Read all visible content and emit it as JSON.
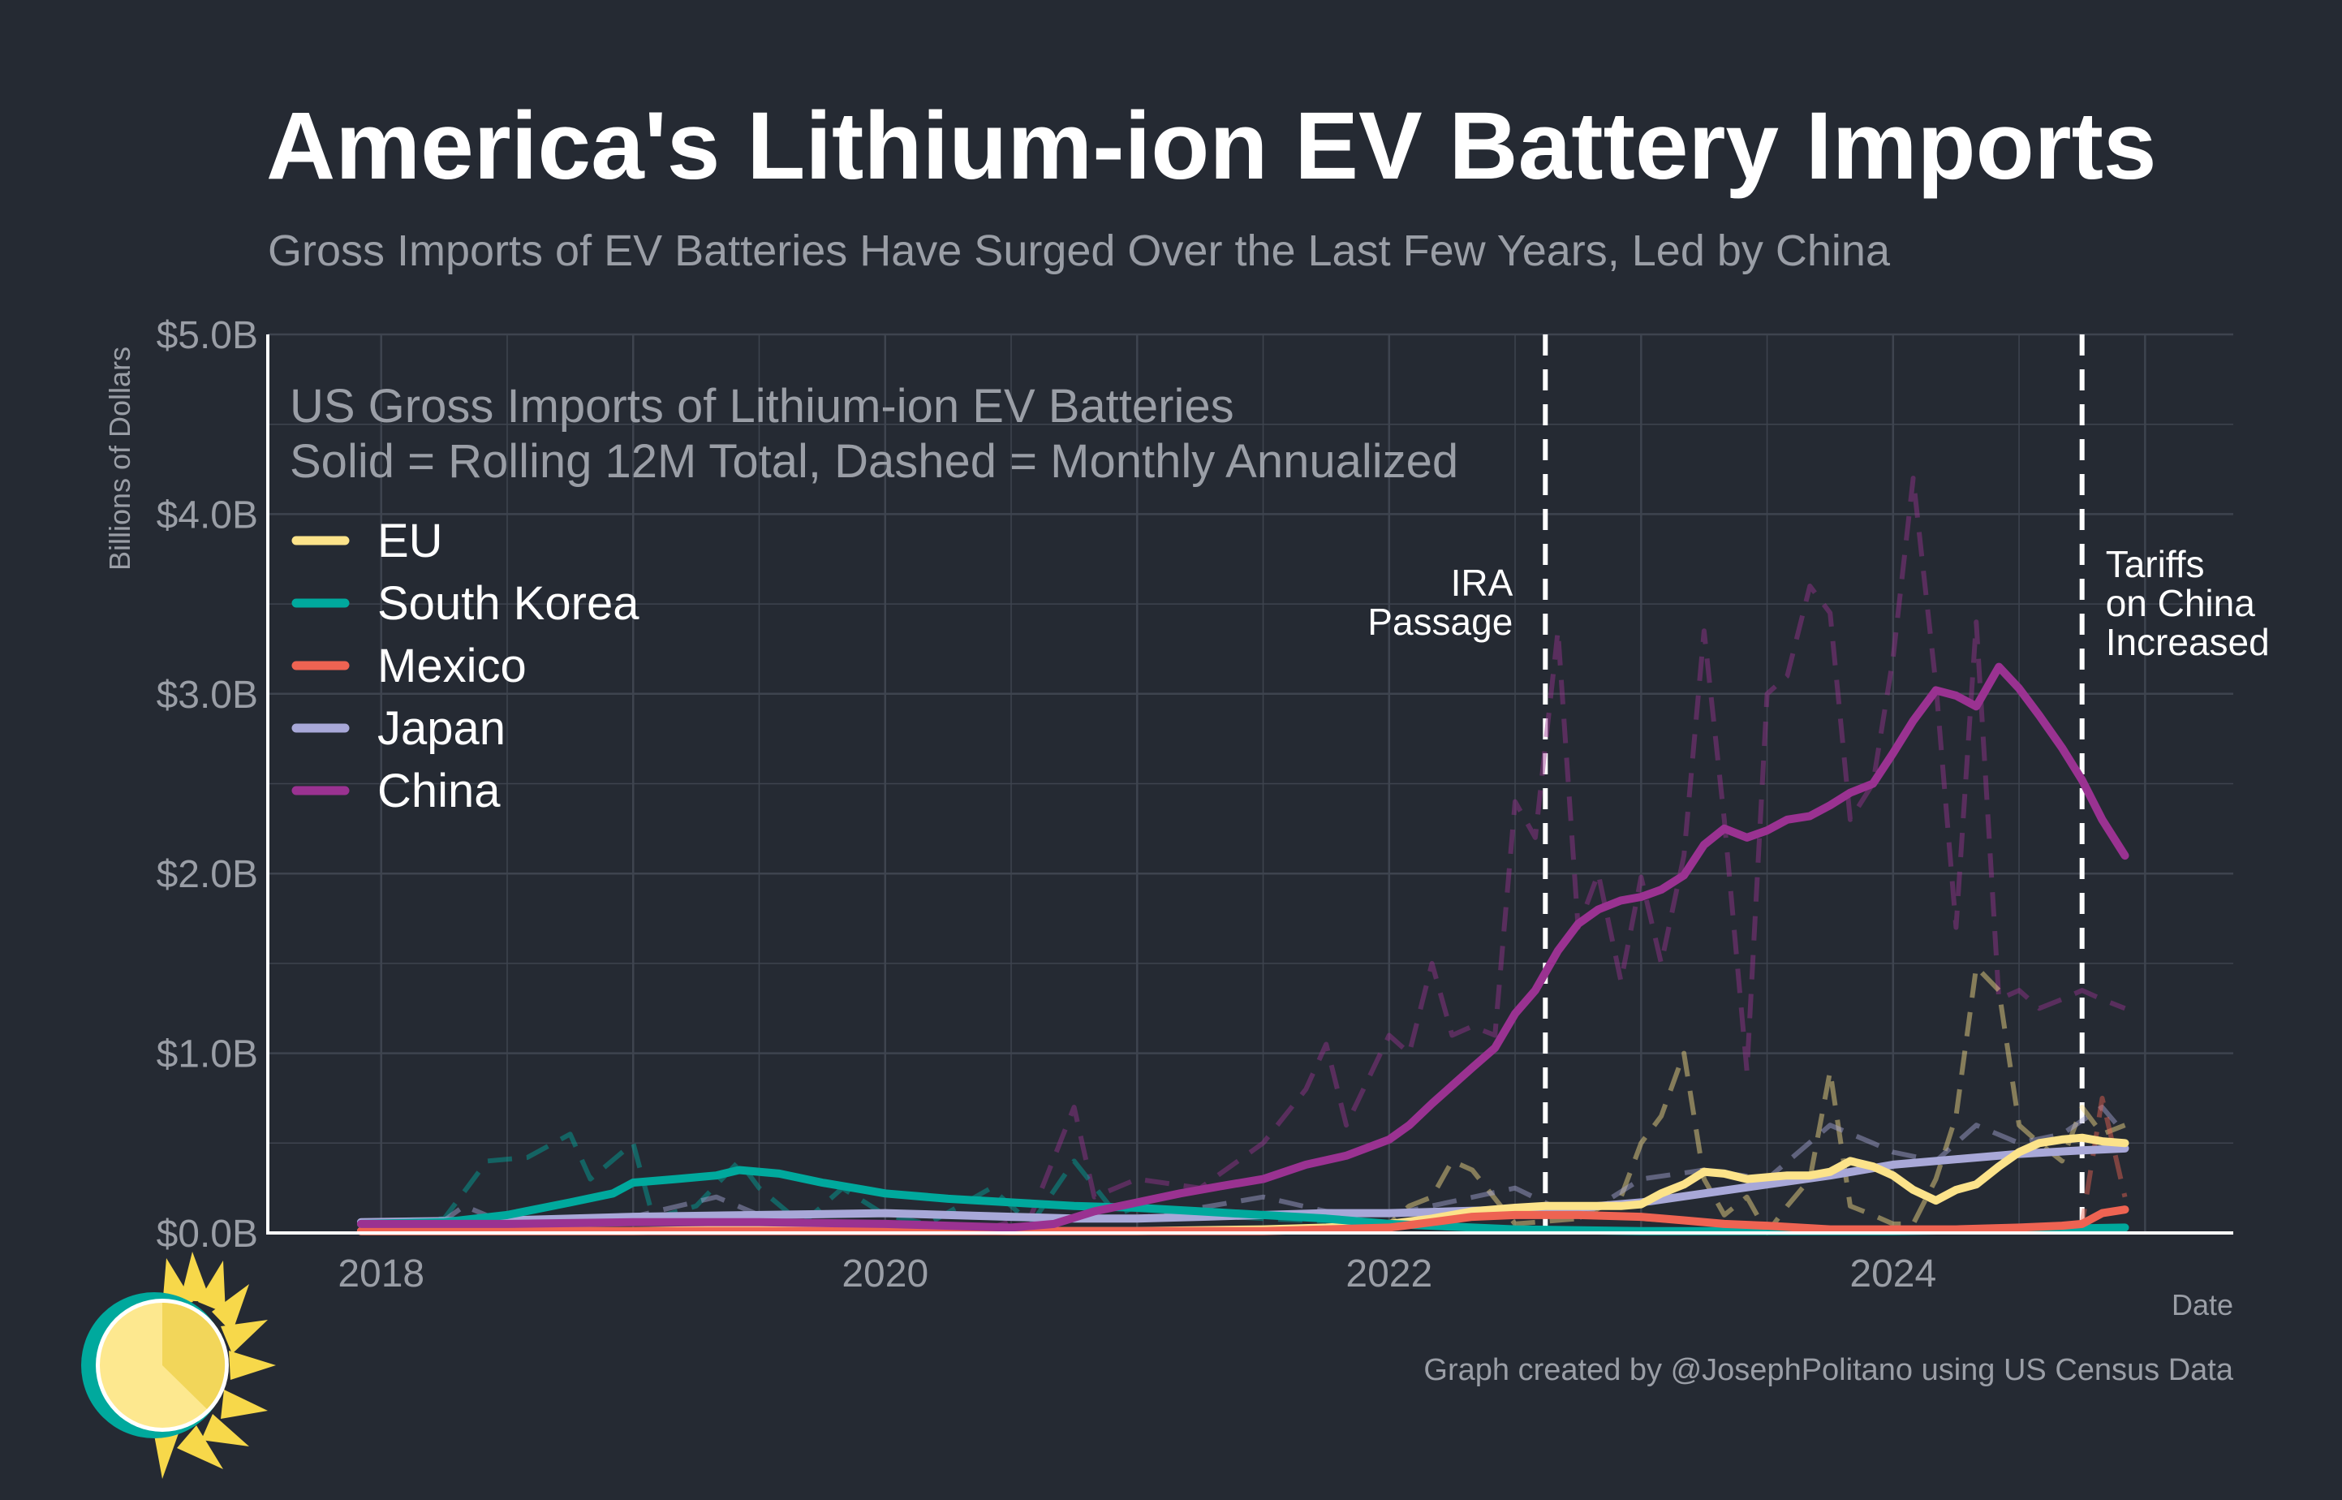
{
  "colors": {
    "background": "#252a33",
    "grid": "#3e444f",
    "axis": "#ffffff",
    "tick_text": "#9a9ea6",
    "title": "#ffffff",
    "subtitle": "#9a9ea6",
    "EU": "#fce38a",
    "South Korea": "#00a99d",
    "Mexico": "#ee6352",
    "Japan": "#a8a8d8",
    "China": "#9a3291"
  },
  "logo": {
    "name": "sun-logo-icon"
  },
  "chart_data": {
    "type": "line",
    "title": "America's Lithium-ion EV Battery Imports",
    "subtitle": "Gross Imports of EV Batteries Have Surged Over the Last Few Years, Led by China",
    "inner_title_line1": "US Gross Imports of Lithium-ion EV Batteries",
    "inner_title_line2": "Solid = Rolling 12M Total, Dashed = Monthly Annualized",
    "xlabel": "Date",
    "ylabel": "Billions of Dollars",
    "caption": "Graph created by @JosephPolitano using US Census Data",
    "xlim": [
      2017.55,
      2025.35
    ],
    "ylim": [
      0,
      5
    ],
    "x_ticks": [
      {
        "value": 2018,
        "label": "2018"
      },
      {
        "value": 2020,
        "label": "2020"
      },
      {
        "value": 2022,
        "label": "2022"
      },
      {
        "value": 2024,
        "label": "2024"
      }
    ],
    "y_ticks": [
      {
        "value": 0,
        "label": "$0.0B"
      },
      {
        "value": 1,
        "label": "$1.0B"
      },
      {
        "value": 2,
        "label": "$2.0B"
      },
      {
        "value": 3,
        "label": "$3.0B"
      },
      {
        "value": 4,
        "label": "$4.0B"
      },
      {
        "value": 5,
        "label": "$5.0B"
      }
    ],
    "grid": true,
    "legend_position": "top-left",
    "legend": [
      "EU",
      "South Korea",
      "Mexico",
      "Japan",
      "China"
    ],
    "annotations": [
      {
        "x": 2022.62,
        "lines": [
          "IRA",
          "Passage"
        ],
        "side": "left"
      },
      {
        "x": 2024.75,
        "lines": [
          "Tariffs",
          "on China",
          "Increased"
        ],
        "side": "right"
      }
    ],
    "series": [
      {
        "name": "EU",
        "style": "solid",
        "x": [
          2017.92,
          2018.5,
          2019.0,
          2019.5,
          2020.0,
          2020.5,
          2021.0,
          2021.5,
          2021.75,
          2022.0,
          2022.17,
          2022.33,
          2022.5,
          2022.62,
          2022.75,
          2022.92,
          2023.0,
          2023.08,
          2023.17,
          2023.25,
          2023.33,
          2023.42,
          2023.5,
          2023.58,
          2023.67,
          2023.75,
          2023.83,
          2023.92,
          2024.0,
          2024.08,
          2024.17,
          2024.25,
          2024.33,
          2024.42,
          2024.5,
          2024.58,
          2024.67,
          2024.75,
          2024.83,
          2024.92
        ],
        "values": [
          0.01,
          0.01,
          0.01,
          0.02,
          0.02,
          0.01,
          0.01,
          0.02,
          0.03,
          0.05,
          0.08,
          0.12,
          0.14,
          0.15,
          0.15,
          0.15,
          0.16,
          0.22,
          0.27,
          0.34,
          0.33,
          0.3,
          0.31,
          0.32,
          0.32,
          0.34,
          0.4,
          0.37,
          0.32,
          0.24,
          0.18,
          0.24,
          0.27,
          0.37,
          0.45,
          0.5,
          0.52,
          0.53,
          0.51,
          0.5
        ]
      },
      {
        "name": "South Korea",
        "style": "solid",
        "x": [
          2017.92,
          2018.25,
          2018.5,
          2018.75,
          2018.92,
          2019.0,
          2019.17,
          2019.33,
          2019.42,
          2019.58,
          2019.75,
          2019.92,
          2020.0,
          2020.25,
          2020.5,
          2020.75,
          2021.0,
          2021.25,
          2021.5,
          2021.75,
          2022.0,
          2022.5,
          2023.0,
          2023.5,
          2024.0,
          2024.5,
          2024.92
        ],
        "values": [
          0.05,
          0.06,
          0.1,
          0.17,
          0.22,
          0.28,
          0.3,
          0.32,
          0.35,
          0.33,
          0.28,
          0.24,
          0.22,
          0.19,
          0.17,
          0.15,
          0.14,
          0.12,
          0.1,
          0.08,
          0.05,
          0.02,
          0.01,
          0.01,
          0.01,
          0.02,
          0.03
        ]
      },
      {
        "name": "Mexico",
        "style": "solid",
        "x": [
          2017.92,
          2018.5,
          2019.0,
          2019.5,
          2020.0,
          2020.5,
          2021.0,
          2021.5,
          2022.0,
          2022.17,
          2022.33,
          2022.5,
          2022.75,
          2023.0,
          2023.17,
          2023.33,
          2023.5,
          2023.75,
          2024.0,
          2024.25,
          2024.5,
          2024.67,
          2024.75,
          2024.83,
          2024.92
        ],
        "values": [
          0.01,
          0.01,
          0.01,
          0.01,
          0.01,
          0.01,
          0.01,
          0.01,
          0.03,
          0.06,
          0.09,
          0.1,
          0.1,
          0.09,
          0.07,
          0.05,
          0.04,
          0.02,
          0.02,
          0.02,
          0.03,
          0.04,
          0.05,
          0.11,
          0.13
        ]
      },
      {
        "name": "Japan",
        "style": "solid",
        "x": [
          2017.92,
          2018.5,
          2019.0,
          2019.5,
          2020.0,
          2020.25,
          2020.5,
          2020.75,
          2021.0,
          2021.25,
          2021.5,
          2021.75,
          2022.0,
          2022.25,
          2022.5,
          2022.75,
          2023.0,
          2023.25,
          2023.5,
          2023.75,
          2024.0,
          2024.25,
          2024.5,
          2024.75,
          2024.92
        ],
        "values": [
          0.06,
          0.07,
          0.09,
          0.1,
          0.11,
          0.1,
          0.09,
          0.08,
          0.08,
          0.09,
          0.1,
          0.11,
          0.11,
          0.12,
          0.13,
          0.14,
          0.17,
          0.22,
          0.27,
          0.32,
          0.38,
          0.41,
          0.44,
          0.46,
          0.47
        ]
      },
      {
        "name": "China",
        "style": "solid",
        "x": [
          2017.92,
          2018.5,
          2019.0,
          2019.5,
          2020.0,
          2020.25,
          2020.5,
          2020.67,
          2020.83,
          2021.0,
          2021.17,
          2021.33,
          2021.5,
          2021.67,
          2021.83,
          2022.0,
          2022.08,
          2022.17,
          2022.25,
          2022.33,
          2022.42,
          2022.5,
          2022.58,
          2022.67,
          2022.75,
          2022.83,
          2022.92,
          2023.0,
          2023.08,
          2023.17,
          2023.25,
          2023.33,
          2023.42,
          2023.5,
          2023.58,
          2023.67,
          2023.75,
          2023.83,
          2023.92,
          2024.0,
          2024.08,
          2024.17,
          2024.25,
          2024.33,
          2024.42,
          2024.5,
          2024.58,
          2024.67,
          2024.75,
          2024.83,
          2024.92
        ],
        "values": [
          0.05,
          0.05,
          0.06,
          0.06,
          0.05,
          0.04,
          0.03,
          0.05,
          0.12,
          0.17,
          0.22,
          0.26,
          0.3,
          0.38,
          0.43,
          0.52,
          0.6,
          0.72,
          0.82,
          0.92,
          1.03,
          1.22,
          1.35,
          1.57,
          1.72,
          1.8,
          1.85,
          1.87,
          1.91,
          1.99,
          2.16,
          2.25,
          2.2,
          2.24,
          2.3,
          2.32,
          2.38,
          2.45,
          2.5,
          2.67,
          2.85,
          3.02,
          2.99,
          2.93,
          3.15,
          3.03,
          2.88,
          2.7,
          2.52,
          2.3,
          2.1
        ]
      },
      {
        "name": "China",
        "style": "dashed",
        "x": [
          2017.92,
          2018.5,
          2019.0,
          2019.5,
          2020.0,
          2020.42,
          2020.58,
          2020.75,
          2020.83,
          2021.0,
          2021.25,
          2021.5,
          2021.67,
          2021.75,
          2021.83,
          2022.0,
          2022.08,
          2022.17,
          2022.25,
          2022.33,
          2022.42,
          2022.5,
          2022.58,
          2022.67,
          2022.75,
          2022.83,
          2022.92,
          2023.0,
          2023.08,
          2023.17,
          2023.25,
          2023.33,
          2023.42,
          2023.5,
          2023.58,
          2023.67,
          2023.75,
          2023.83,
          2023.92,
          2024.0,
          2024.08,
          2024.17,
          2024.25,
          2024.33,
          2024.42,
          2024.5,
          2024.58,
          2024.67,
          2024.75,
          2024.83,
          2024.92
        ],
        "values": [
          0.05,
          0.05,
          0.06,
          0.06,
          0.05,
          0.03,
          0.1,
          0.7,
          0.2,
          0.3,
          0.25,
          0.5,
          0.8,
          1.05,
          0.6,
          1.1,
          1.0,
          1.5,
          1.1,
          1.15,
          1.1,
          2.4,
          2.2,
          3.35,
          1.7,
          2.0,
          1.4,
          1.98,
          1.5,
          2.1,
          3.35,
          2.3,
          0.9,
          3.0,
          3.1,
          3.6,
          3.45,
          2.3,
          2.5,
          3.2,
          4.2,
          3.05,
          1.7,
          3.4,
          1.3,
          1.35,
          1.25,
          1.3,
          1.35,
          1.3,
          1.25
        ]
      },
      {
        "name": "EU",
        "style": "dashed",
        "x": [
          2017.92,
          2018.5,
          2019.0,
          2019.5,
          2020.0,
          2020.5,
          2021.0,
          2021.5,
          2022.0,
          2022.08,
          2022.17,
          2022.25,
          2022.33,
          2022.5,
          2022.75,
          2022.92,
          2023.0,
          2023.08,
          2023.17,
          2023.25,
          2023.33,
          2023.42,
          2023.5,
          2023.58,
          2023.67,
          2023.75,
          2023.83,
          2023.92,
          2024.0,
          2024.08,
          2024.17,
          2024.25,
          2024.33,
          2024.42,
          2024.5,
          2024.58,
          2024.67,
          2024.75,
          2024.83,
          2024.92
        ],
        "values": [
          0.01,
          0.01,
          0.01,
          0.02,
          0.02,
          0.01,
          0.01,
          0.02,
          0.05,
          0.15,
          0.2,
          0.4,
          0.35,
          0.05,
          0.08,
          0.2,
          0.5,
          0.65,
          1.0,
          0.3,
          0.1,
          0.2,
          0.0,
          0.15,
          0.3,
          0.9,
          0.15,
          0.1,
          0.05,
          0.05,
          0.3,
          0.65,
          1.48,
          1.35,
          0.6,
          0.5,
          0.4,
          0.7,
          0.55,
          0.6
        ]
      },
      {
        "name": "South Korea",
        "style": "dashed",
        "x": [
          2017.92,
          2018.25,
          2018.42,
          2018.58,
          2018.75,
          2018.83,
          2019.0,
          2019.08,
          2019.25,
          2019.42,
          2019.5,
          2019.67,
          2019.83,
          2020.0,
          2020.17,
          2020.42,
          2020.58,
          2020.75,
          2020.92,
          2021.0,
          2021.25,
          2021.5,
          2022.0,
          2022.5,
          2023.0,
          2023.5,
          2024.0,
          2024.5,
          2024.92
        ],
        "values": [
          0.05,
          0.08,
          0.4,
          0.42,
          0.55,
          0.3,
          0.5,
          0.08,
          0.15,
          0.4,
          0.25,
          0.05,
          0.25,
          0.1,
          0.05,
          0.25,
          0.05,
          0.4,
          0.1,
          0.15,
          0.1,
          0.08,
          0.05,
          0.02,
          0.01,
          0.01,
          0.01,
          0.02,
          0.03
        ]
      },
      {
        "name": "Japan",
        "style": "dashed",
        "x": [
          2017.92,
          2018.25,
          2018.33,
          2018.5,
          2019.0,
          2019.33,
          2019.5,
          2020.0,
          2020.5,
          2021.0,
          2021.5,
          2021.75,
          2022.0,
          2022.5,
          2022.75,
          2023.0,
          2023.25,
          2023.5,
          2023.75,
          2023.92,
          2024.0,
          2024.17,
          2024.33,
          2024.5,
          2024.67,
          2024.83,
          2024.92
        ],
        "values": [
          0.06,
          0.07,
          0.15,
          0.05,
          0.09,
          0.2,
          0.1,
          0.11,
          0.09,
          0.08,
          0.2,
          0.12,
          0.1,
          0.25,
          0.08,
          0.3,
          0.35,
          0.3,
          0.6,
          0.5,
          0.45,
          0.4,
          0.6,
          0.5,
          0.55,
          0.7,
          0.55
        ]
      },
      {
        "name": "Mexico",
        "style": "dashed",
        "x": [
          2017.92,
          2018.5,
          2019.0,
          2020.0,
          2021.0,
          2022.0,
          2022.33,
          2022.5,
          2022.75,
          2023.0,
          2023.5,
          2024.0,
          2024.5,
          2024.75,
          2024.83,
          2024.92
        ],
        "values": [
          0.01,
          0.01,
          0.01,
          0.01,
          0.01,
          0.03,
          0.1,
          0.12,
          0.1,
          0.08,
          0.03,
          0.02,
          0.03,
          0.05,
          0.75,
          0.2
        ]
      }
    ]
  }
}
